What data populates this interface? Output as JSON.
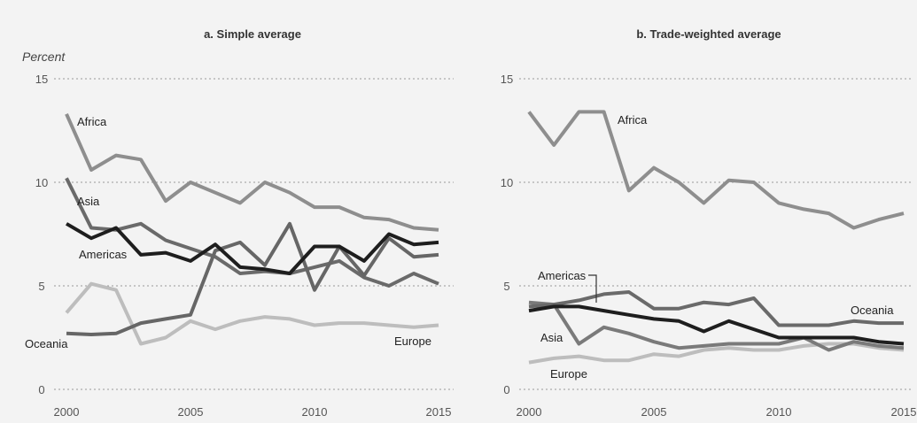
{
  "chart_data": [
    {
      "type": "line",
      "title": "a. Simple average",
      "ylabel": "Percent",
      "xlabel": "",
      "xlim": [
        2000,
        2015
      ],
      "ylim": [
        0,
        15
      ],
      "x_ticks": [
        2000,
        2005,
        2010,
        2015
      ],
      "y_ticks": [
        0,
        5,
        10,
        15
      ],
      "grid": "horizontal-dotted",
      "x": [
        2000,
        2001,
        2002,
        2003,
        2004,
        2005,
        2006,
        2007,
        2008,
        2009,
        2010,
        2011,
        2012,
        2013,
        2014,
        2015
      ],
      "series": [
        {
          "name": "Africa",
          "color": "#8e8e8e",
          "values": [
            13.3,
            10.6,
            11.3,
            11.1,
            9.1,
            10.0,
            9.5,
            9.0,
            10.0,
            9.5,
            8.8,
            8.8,
            8.3,
            8.2,
            7.8,
            7.7
          ]
        },
        {
          "name": "Asia",
          "color": "#6a6a6a",
          "values": [
            10.2,
            7.8,
            7.7,
            8.0,
            7.2,
            6.8,
            6.4,
            5.6,
            5.7,
            5.6,
            5.9,
            6.2,
            5.4,
            5.0,
            5.6,
            5.1
          ]
        },
        {
          "name": "Americas",
          "color": "#1e1e1e",
          "values": [
            8.0,
            7.3,
            7.8,
            6.5,
            6.6,
            6.2,
            7.0,
            5.9,
            5.8,
            5.6,
            6.9,
            6.9,
            6.2,
            7.5,
            7.0,
            7.1
          ]
        },
        {
          "name": "Oceania",
          "color": "#666666",
          "values": [
            2.7,
            2.65,
            2.7,
            3.2,
            3.4,
            3.6,
            6.7,
            7.1,
            6.0,
            8.0,
            4.8,
            6.9,
            5.5,
            7.3,
            6.4,
            6.5
          ]
        },
        {
          "name": "Europe",
          "color": "#bdbdbd",
          "values": [
            3.7,
            5.1,
            4.8,
            2.2,
            2.5,
            3.3,
            2.9,
            3.3,
            3.5,
            3.4,
            3.1,
            3.2,
            3.2,
            3.1,
            3.0,
            3.1
          ]
        }
      ]
    },
    {
      "type": "line",
      "title": "b. Trade-weighted average",
      "ylabel": "",
      "xlabel": "",
      "xlim": [
        2000,
        2015
      ],
      "ylim": [
        0,
        15
      ],
      "x_ticks": [
        2000,
        2005,
        2010,
        2015
      ],
      "y_ticks": [
        0,
        5,
        10,
        15
      ],
      "grid": "horizontal-dotted",
      "x": [
        2000,
        2001,
        2002,
        2003,
        2004,
        2005,
        2006,
        2007,
        2008,
        2009,
        2010,
        2011,
        2012,
        2013,
        2014,
        2015
      ],
      "series": [
        {
          "name": "Africa",
          "color": "#8e8e8e",
          "values": [
            13.4,
            11.8,
            13.4,
            13.4,
            9.6,
            10.7,
            10.0,
            9.0,
            10.1,
            10.0,
            9.0,
            8.7,
            8.5,
            7.8,
            8.2,
            8.5
          ]
        },
        {
          "name": "Americas",
          "color": "#6a6a6a",
          "values": [
            4.0,
            4.1,
            4.3,
            4.6,
            4.7,
            3.9,
            3.9,
            4.2,
            4.1,
            4.4,
            3.1,
            3.1,
            3.1,
            3.3,
            3.2,
            3.2
          ]
        },
        {
          "name": "Asia",
          "color": "#7a7a7a",
          "values": [
            4.2,
            4.1,
            2.2,
            3.0,
            2.7,
            2.3,
            2.0,
            2.1,
            2.2,
            2.2,
            2.2,
            2.5,
            1.9,
            2.3,
            2.1,
            2.0
          ]
        },
        {
          "name": "Oceania",
          "color": "#1e1e1e",
          "values": [
            3.8,
            4.0,
            4.0,
            3.8,
            3.6,
            3.4,
            3.3,
            2.8,
            3.3,
            2.9,
            2.5,
            2.5,
            2.5,
            2.5,
            2.3,
            2.2
          ]
        },
        {
          "name": "Europe",
          "color": "#bdbdbd",
          "values": [
            1.3,
            1.5,
            1.6,
            1.4,
            1.4,
            1.7,
            1.6,
            1.9,
            2.0,
            1.9,
            1.9,
            2.1,
            2.2,
            2.2,
            2.0,
            1.9
          ]
        }
      ]
    }
  ]
}
